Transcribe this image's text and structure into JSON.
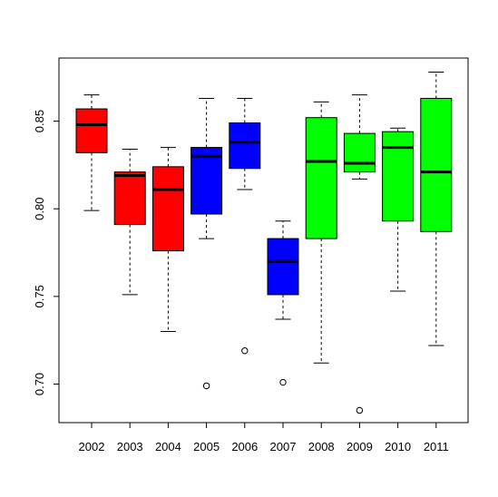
{
  "chart_data": {
    "type": "box",
    "title": "",
    "xlabel": "",
    "ylabel": "",
    "ylim": [
      0.678,
      0.886
    ],
    "yticks": [
      0.7,
      0.75,
      0.8,
      0.85
    ],
    "ytick_labels": [
      "0.70",
      "0.75",
      "0.80",
      "0.85"
    ],
    "categories": [
      "2002",
      "2003",
      "2004",
      "2005",
      "2006",
      "2007",
      "2008",
      "2009",
      "2010",
      "2011"
    ],
    "boxes": [
      {
        "category": "2002",
        "color": "#ff0000",
        "min": 0.799,
        "q1": 0.832,
        "median": 0.848,
        "q3": 0.857,
        "max": 0.865,
        "outliers": []
      },
      {
        "category": "2003",
        "color": "#ff0000",
        "min": 0.751,
        "q1": 0.791,
        "median": 0.819,
        "q3": 0.821,
        "max": 0.834,
        "outliers": []
      },
      {
        "category": "2004",
        "color": "#ff0000",
        "min": 0.73,
        "q1": 0.776,
        "median": 0.811,
        "q3": 0.824,
        "max": 0.835,
        "outliers": []
      },
      {
        "category": "2005",
        "color": "#0000ff",
        "min": 0.783,
        "q1": 0.797,
        "median": 0.83,
        "q3": 0.835,
        "max": 0.863,
        "outliers": [
          0.699
        ]
      },
      {
        "category": "2006",
        "color": "#0000ff",
        "min": 0.811,
        "q1": 0.823,
        "median": 0.838,
        "q3": 0.849,
        "max": 0.863,
        "outliers": [
          0.719
        ]
      },
      {
        "category": "2007",
        "color": "#0000ff",
        "min": 0.737,
        "q1": 0.751,
        "median": 0.77,
        "q3": 0.783,
        "max": 0.793,
        "outliers": [
          0.701
        ]
      },
      {
        "category": "2008",
        "color": "#00ff00",
        "min": 0.712,
        "q1": 0.783,
        "median": 0.827,
        "q3": 0.852,
        "max": 0.861,
        "outliers": []
      },
      {
        "category": "2009",
        "color": "#00ff00",
        "min": 0.817,
        "q1": 0.821,
        "median": 0.826,
        "q3": 0.843,
        "max": 0.865,
        "outliers": [
          0.685
        ]
      },
      {
        "category": "2010",
        "color": "#00ff00",
        "min": 0.753,
        "q1": 0.793,
        "median": 0.835,
        "q3": 0.844,
        "max": 0.846,
        "outliers": []
      },
      {
        "category": "2011",
        "color": "#00ff00",
        "min": 0.722,
        "q1": 0.787,
        "median": 0.821,
        "q3": 0.863,
        "max": 0.878,
        "outliers": []
      }
    ],
    "grid": false,
    "legend": null
  }
}
